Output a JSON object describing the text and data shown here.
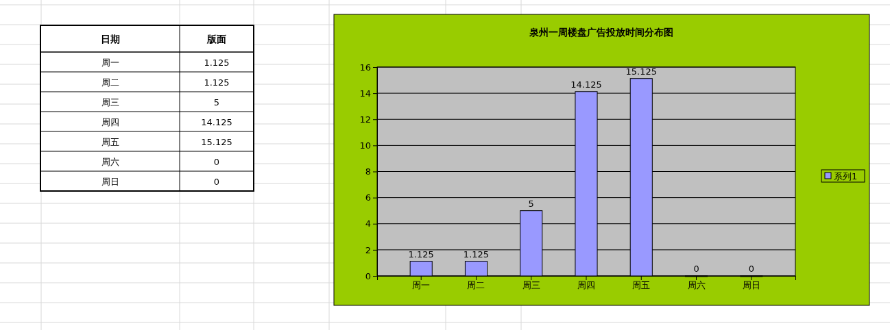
{
  "chart_data": [
    {
      "type": "other",
      "annotations": [
        "日期",
        "版面",
        "周一",
        "1.125",
        "周二",
        "1.125",
        "周三",
        "5",
        "周四",
        "14.125",
        "周五",
        "15.125",
        "周六",
        "0",
        "周日",
        "0"
      ]
    },
    {
      "type": "bar",
      "title": "泉州一周楼盘广告投放时间分布图",
      "categories": [
        "周一",
        "周二",
        "周三",
        "周四",
        "周五",
        "周六",
        "周日"
      ],
      "series": [
        {
          "name": "系列1",
          "color": "#9999ff",
          "values": [
            1.125,
            1.125,
            5,
            14.125,
            15.125,
            0,
            0
          ]
        }
      ],
      "ylim": [
        0,
        16
      ],
      "yticks": [
        0,
        2,
        4,
        6,
        8,
        10,
        12,
        14,
        16
      ],
      "grid": "y",
      "legend": "right",
      "data_labels": true
    }
  ]
}
